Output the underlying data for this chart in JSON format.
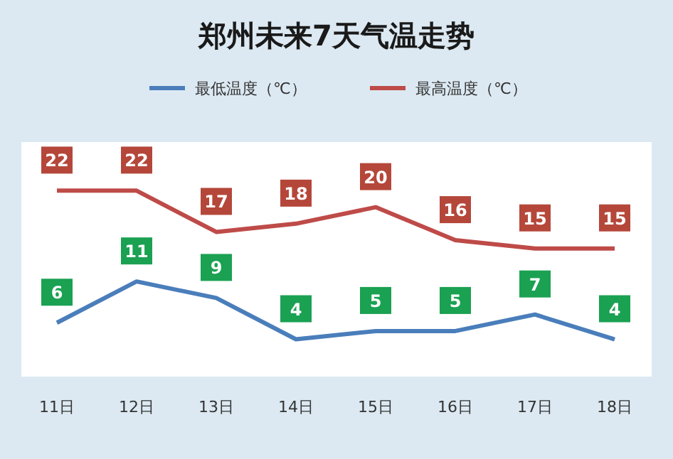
{
  "chart_data": {
    "type": "line",
    "title": "郑州未来7天气温走势",
    "categories": [
      "11日",
      "12日",
      "13日",
      "14日",
      "15日",
      "16日",
      "17日",
      "18日"
    ],
    "series": [
      {
        "name": "最低温度（℃）",
        "color": "#4a7ebb",
        "values": [
          6,
          11,
          9,
          4,
          5,
          5,
          7,
          4
        ]
      },
      {
        "name": "最高温度（℃）",
        "color": "#be4b48",
        "values": [
          22,
          22,
          17,
          18,
          20,
          16,
          15,
          15
        ]
      }
    ],
    "data_labels": true,
    "legend": "top",
    "marker": "none",
    "line_style": "solid"
  }
}
